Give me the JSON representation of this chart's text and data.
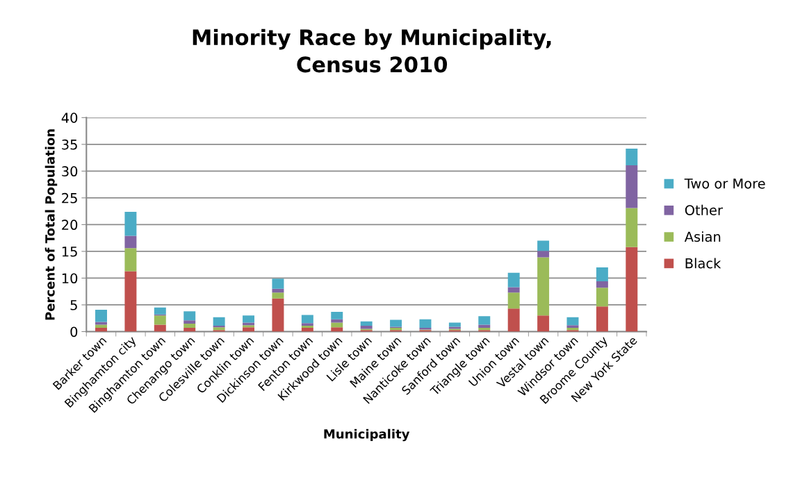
{
  "chart_data": {
    "type": "bar",
    "title": "Minority Race by Municipality,\nCensus 2010",
    "xlabel": "Municipality",
    "ylabel": "Percent of Total Population",
    "categories": [
      "Barker town",
      "Binghamton city",
      "Binghamton town",
      "Chenango town",
      "Colesville town",
      "Conklin town",
      "Dickinson town",
      "Fenton town",
      "Kirkwood town",
      "Lisle town",
      "Maine town",
      "Nanticoke town",
      "Sanford town",
      "Triangle town",
      "Union town",
      "Vestal town",
      "Windsor town",
      "Broome County",
      "New York State"
    ],
    "stacked": true,
    "series": [
      {
        "name": "Black",
        "color": "#c0504d",
        "values": [
          0.7,
          11.3,
          1.3,
          0.7,
          0.3,
          0.8,
          6.2,
          0.7,
          0.8,
          0.3,
          0.3,
          0.3,
          0.3,
          0.3,
          4.3,
          3.0,
          0.3,
          4.7,
          15.8
        ]
      },
      {
        "name": "Asian",
        "color": "#9bbb59",
        "values": [
          0.6,
          4.3,
          1.7,
          0.8,
          0.5,
          0.4,
          1.1,
          0.4,
          0.9,
          0.2,
          0.4,
          0.1,
          0.2,
          0.4,
          3.0,
          10.9,
          0.4,
          3.5,
          7.3
        ]
      },
      {
        "name": "Other",
        "color": "#8064a2",
        "values": [
          0.5,
          2.3,
          0.2,
          0.6,
          0.3,
          0.5,
          0.7,
          0.5,
          0.6,
          0.6,
          0.2,
          0.3,
          0.4,
          0.6,
          1.0,
          1.2,
          0.5,
          1.2,
          8.0
        ]
      },
      {
        "name": "Two or More",
        "color": "#4bacc6",
        "values": [
          2.3,
          4.5,
          1.3,
          1.7,
          1.6,
          1.3,
          1.9,
          1.5,
          1.4,
          0.8,
          1.3,
          1.6,
          0.8,
          1.6,
          2.7,
          1.9,
          1.5,
          2.6,
          3.1
        ]
      }
    ],
    "ylim": [
      0,
      40
    ],
    "yticks": [
      0,
      5,
      10,
      15,
      20,
      25,
      30,
      35,
      40
    ],
    "grid": "y",
    "legend": "right"
  }
}
